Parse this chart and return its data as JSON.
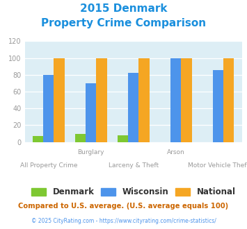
{
  "title_line1": "2015 Denmark",
  "title_line2": "Property Crime Comparison",
  "cat_labels_top": [
    "",
    "Burglary",
    "",
    "Arson",
    ""
  ],
  "cat_labels_bot": [
    "All Property Crime",
    "",
    "Larceny & Theft",
    "",
    "Motor Vehicle Theft"
  ],
  "denmark": [
    7,
    10,
    8,
    0,
    0
  ],
  "wisconsin": [
    80,
    70,
    82,
    100,
    86
  ],
  "national": [
    100,
    100,
    100,
    100,
    100
  ],
  "denmark_color": "#7ec832",
  "wisconsin_color": "#4d94eb",
  "national_color": "#f5a623",
  "bg_color": "#ddeef5",
  "ylim": [
    0,
    120
  ],
  "yticks": [
    0,
    20,
    40,
    60,
    80,
    100,
    120
  ],
  "legend_labels": [
    "Denmark",
    "Wisconsin",
    "National"
  ],
  "footer1": "Compared to U.S. average. (U.S. average equals 100)",
  "footer2": "© 2025 CityRating.com - https://www.cityrating.com/crime-statistics/",
  "title_color": "#1a8fdd",
  "footer1_color": "#cc6600",
  "footer2_color": "#4d94eb",
  "tick_label_color": "#999999",
  "cat_label_color": "#999999"
}
